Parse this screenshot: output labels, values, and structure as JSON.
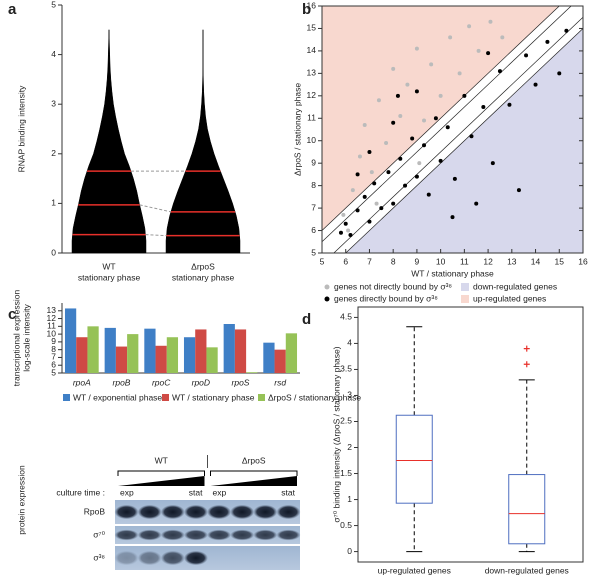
{
  "chart_data": [
    {
      "type": "violin",
      "panel": "a",
      "ylabel": "RNAP binding intensity",
      "categories": [
        [
          "WT",
          "stationary phase"
        ],
        [
          "ΔrpoS",
          "stationary phase"
        ]
      ],
      "ylim": [
        0,
        5
      ],
      "yticks": [
        0,
        1,
        2,
        3,
        4,
        5
      ],
      "y_levels": [
        0,
        0.25,
        0.5,
        0.75,
        1,
        1.25,
        1.5,
        1.75,
        2,
        2.25,
        2.5,
        2.75,
        3,
        3.25,
        3.5,
        3.75,
        4,
        4.25,
        4.5
      ],
      "color": "#000000",
      "quartile_color": "#e8302a",
      "series": [
        {
          "widths": [
            1,
            1,
            0.97,
            0.9,
            0.82,
            0.75,
            0.66,
            0.55,
            0.42,
            0.33,
            0.25,
            0.18,
            0.12,
            0.08,
            0.05,
            0.03,
            0.02,
            0.01,
            0
          ],
          "quartiles": [
            0.37,
            0.97,
            1.65
          ]
        },
        {
          "widths": [
            1,
            1,
            0.97,
            0.9,
            0.8,
            0.68,
            0.55,
            0.42,
            0.3,
            0.2,
            0.12,
            0.07,
            0.04,
            0.02,
            0.01,
            0,
            0,
            0,
            0
          ],
          "quartiles": [
            0.35,
            0.83,
            1.65
          ]
        }
      ]
    },
    {
      "type": "scatter",
      "panel": "b",
      "xlabel": "WT / stationary phase",
      "ylabel": "ΔrpoS / stationary phase",
      "xlim": [
        5,
        16
      ],
      "ylim": [
        5,
        16
      ],
      "xticks": [
        5,
        6,
        7,
        8,
        9,
        10,
        11,
        12,
        13,
        14,
        15,
        16
      ],
      "yticks": [
        5,
        6,
        7,
        8,
        9,
        10,
        11,
        12,
        13,
        14,
        15,
        16
      ],
      "regions": [
        {
          "name": "down-regulated genes",
          "color": "#d7d8ec"
        },
        {
          "name": "up-regulated genes",
          "color": "#f8d8cf"
        }
      ],
      "series": [
        {
          "name": "genes not directly bound by σ³⁸",
          "color": "#bbbbbb",
          "x": [
            5.9,
            6.3,
            6.6,
            6.8,
            7.1,
            7.4,
            7.7,
            8.0,
            8.3,
            8.6,
            9.0,
            9.3,
            9.6,
            10.0,
            10.4,
            10.8,
            11.2,
            11.6,
            12.1,
            12.6,
            6.1,
            7.3,
            9.1
          ],
          "y": [
            6.7,
            7.8,
            9.3,
            10.7,
            8.6,
            11.8,
            9.9,
            13.2,
            11.1,
            12.5,
            14.1,
            10.9,
            13.4,
            12.0,
            14.6,
            13.0,
            15.1,
            14.0,
            15.3,
            14.6,
            6.0,
            7.2,
            9.0
          ]
        },
        {
          "name": "genes directly bound by σ³⁸",
          "color": "#000000",
          "x": [
            5.8,
            6.0,
            6.2,
            6.5,
            6.8,
            7.0,
            7.2,
            7.5,
            7.8,
            8.0,
            8.3,
            8.5,
            8.8,
            9.0,
            9.3,
            9.5,
            9.8,
            10.0,
            10.3,
            10.6,
            11.0,
            11.3,
            11.8,
            12.2,
            12.5,
            12.9,
            13.3,
            13.6,
            14.0,
            14.5,
            15.0,
            15.3,
            7.0,
            8.0,
            9.0,
            6.5,
            11.5,
            10.5,
            12.0,
            8.2
          ],
          "y": [
            5.9,
            6.3,
            5.8,
            6.9,
            7.5,
            6.4,
            8.1,
            7.0,
            8.6,
            7.2,
            9.2,
            8.0,
            10.1,
            8.4,
            9.8,
            7.6,
            11.0,
            9.1,
            10.6,
            8.3,
            12.0,
            10.2,
            11.5,
            9.0,
            13.1,
            11.6,
            7.8,
            13.8,
            12.5,
            14.4,
            13.0,
            14.9,
            9.5,
            10.8,
            12.2,
            8.5,
            7.2,
            6.6,
            13.9,
            12.0
          ]
        }
      ]
    },
    {
      "type": "bar",
      "panel": "c",
      "ylabel": [
        "transcriptional expression",
        "log-scale intensity"
      ],
      "categories": [
        "rpoA",
        "rpoB",
        "rpoC",
        "rpoD",
        "rpoS",
        "rsd"
      ],
      "ylim": [
        5,
        14
      ],
      "yticks": [
        5,
        6,
        7,
        8,
        9,
        10,
        11,
        12,
        13
      ],
      "series": [
        {
          "name": "WT / exponential phase",
          "color": "#3f7fc6",
          "values": [
            13.3,
            10.8,
            10.7,
            9.6,
            11.3,
            8.9
          ]
        },
        {
          "name": "WT / stationary phase",
          "color": "#cf4a45",
          "values": [
            9.6,
            8.4,
            8.5,
            10.6,
            10.6,
            8.0
          ]
        },
        {
          "name": "ΔrpoS / stationary phase",
          "color": "#96c257",
          "values": [
            11.0,
            10.0,
            9.6,
            8.3,
            5.1,
            10.1
          ]
        }
      ]
    },
    {
      "type": "box",
      "panel": "d",
      "ylabel": "σ⁷⁰ binding intensity (ΔrpoS / stationary phase)",
      "categories": [
        "up-regulated genes",
        "down-regulated genes"
      ],
      "ylim": [
        -0.2,
        4.7
      ],
      "yticks": [
        0,
        0.5,
        1,
        1.5,
        2,
        2.5,
        3,
        3.5,
        4,
        4.5
      ],
      "box_color": "#4f6fc0",
      "median_color": "#e8302a",
      "outlier_color": "#e8302a",
      "series": [
        {
          "min": 0,
          "q1": 0.93,
          "median": 1.75,
          "q3": 2.62,
          "max": 4.32,
          "outliers": []
        },
        {
          "min": 0,
          "q1": 0.15,
          "median": 0.73,
          "q3": 1.48,
          "max": 3.3,
          "outliers": [
            3.6,
            3.9
          ]
        }
      ]
    }
  ],
  "blot": {
    "ylabel": "protein expression",
    "groups": [
      "WT",
      "ΔrpoS"
    ],
    "time_label": "culture time :",
    "time_ends": [
      "exp",
      "stat"
    ],
    "rows": [
      "RpoB",
      "σ⁷⁰",
      "σ³⁸"
    ]
  }
}
